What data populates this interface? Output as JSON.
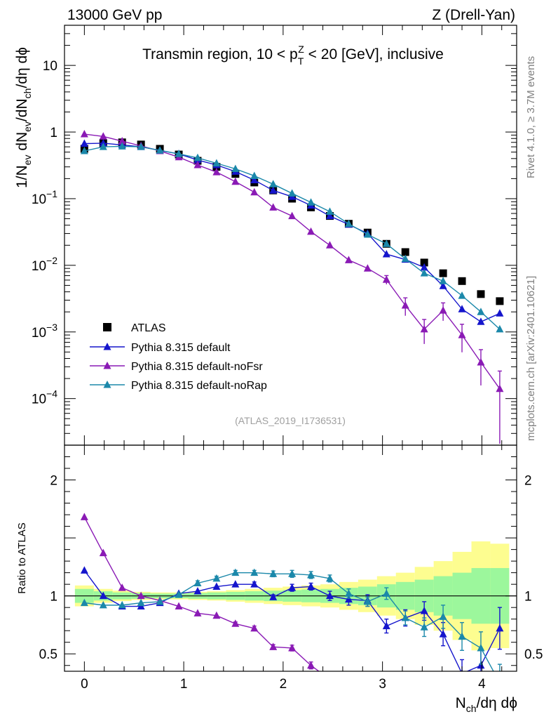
{
  "chart_data": {
    "type": "scatter",
    "header": {
      "left": "13000 GeV pp",
      "right": "Z (Drell-Yan)"
    },
    "title": {
      "prefix": "Transmin region, 10 < p",
      "sup": "Z",
      "sub": "T",
      "suffix": " < 20 [GeV], inclusive"
    },
    "ylabel_main": {
      "p1": "1/N",
      "s1": "ev",
      "p2": " dN",
      "s2": "ev",
      "p3": "/dN",
      "s3": "ch",
      "p4": "/dη dϕ"
    },
    "ylabel_ratio": "Ratio to ATLAS",
    "xlabel": {
      "p1": "N",
      "s1": "ch",
      "p2": "/dη dϕ"
    },
    "analysis_id": "(ATLAS_2019_I1736531)",
    "side_text": {
      "rivet": "Rivet 4.1.0, ≥ 3.7M events",
      "mcplots": "mcplots.cern.ch [arXiv:2401.10621]"
    },
    "main_panel": {
      "yscale": "log",
      "ylim": [
        2e-05,
        40
      ],
      "y_major_ticks": [
        {
          "value": 10,
          "base": "10",
          "exp": ""
        },
        {
          "value": 1,
          "base": "1",
          "exp": ""
        },
        {
          "value": 0.1,
          "base": "10",
          "exp": "−1"
        },
        {
          "value": 0.01,
          "base": "10",
          "exp": "−2"
        },
        {
          "value": 0.001,
          "base": "10",
          "exp": "−3"
        },
        {
          "value": 0.0001,
          "base": "10",
          "exp": "−4"
        }
      ]
    },
    "ratio_panel": {
      "ylim": [
        0.35,
        2.3
      ],
      "y_ticks": [
        {
          "value": 0.5,
          "label": "0.5"
        },
        {
          "value": 1,
          "label": "1"
        },
        {
          "value": 2,
          "label": "2"
        }
      ]
    },
    "xlim": [
      -0.2,
      4.35
    ],
    "x_ticks": [
      {
        "value": 0,
        "label": "0"
      },
      {
        "value": 1,
        "label": "1"
      },
      {
        "value": 2,
        "label": "2"
      },
      {
        "value": 3,
        "label": "3"
      },
      {
        "value": 4,
        "label": "4"
      }
    ],
    "x": [
      0.0,
      0.19,
      0.38,
      0.57,
      0.76,
      0.95,
      1.14,
      1.33,
      1.52,
      1.71,
      1.9,
      2.09,
      2.28,
      2.47,
      2.66,
      2.85,
      3.04,
      3.23,
      3.42,
      3.61,
      3.8,
      3.99,
      4.18
    ],
    "bin_width": 0.19,
    "atlas_band_green": [
      0.06,
      0.04,
      0.03,
      0.025,
      0.02,
      0.02,
      0.025,
      0.03,
      0.035,
      0.04,
      0.045,
      0.05,
      0.055,
      0.06,
      0.07,
      0.08,
      0.1,
      0.12,
      0.14,
      0.17,
      0.2,
      0.24,
      0.24
    ],
    "atlas_band_yellow": [
      0.09,
      0.06,
      0.045,
      0.035,
      0.03,
      0.03,
      0.035,
      0.04,
      0.05,
      0.06,
      0.07,
      0.08,
      0.09,
      0.1,
      0.12,
      0.14,
      0.17,
      0.2,
      0.25,
      0.3,
      0.38,
      0.47,
      0.45
    ],
    "series": [
      {
        "name": "ATLAS",
        "color": "#000000",
        "marker": "square",
        "values": [
          0.56,
          0.68,
          0.7,
          0.65,
          0.56,
          0.46,
          0.37,
          0.3,
          0.235,
          0.175,
          0.133,
          0.1,
          0.074,
          0.055,
          0.042,
          0.031,
          0.021,
          0.0158,
          0.011,
          0.0076,
          0.0058,
          0.0037,
          0.0029
        ],
        "ratio": [
          1,
          1,
          1,
          1,
          1,
          1,
          1,
          1,
          1,
          1,
          1,
          1,
          1,
          1,
          1,
          1,
          1,
          1,
          1,
          1,
          1,
          1,
          1
        ]
      },
      {
        "name": "Pythia 8.315 default",
        "color": "#1515cc",
        "marker": "triangle",
        "values": [
          0.67,
          0.68,
          0.64,
          0.6,
          0.53,
          0.47,
          0.38,
          0.32,
          0.255,
          0.19,
          0.133,
          0.107,
          0.079,
          0.055,
          0.041,
          0.03,
          0.0147,
          0.0122,
          0.0093,
          0.0049,
          0.0022,
          0.00142,
          0.0019
        ],
        "ratio": [
          1.22,
          1.0,
          0.91,
          0.91,
          0.94,
          1.02,
          1.04,
          1.08,
          1.1,
          1.1,
          0.99,
          1.07,
          1.08,
          1.0,
          0.97,
          0.96,
          0.74,
          0.81,
          0.87,
          0.67,
          0.33,
          0.4,
          0.72
        ],
        "ratio_err": [
          0,
          0,
          0,
          0,
          0,
          0,
          0,
          0,
          0,
          0.02,
          0.02,
          0.03,
          0.03,
          0.04,
          0.05,
          0.05,
          0.06,
          0.07,
          0.08,
          0.1,
          0.12,
          0.14,
          0.18
        ]
      },
      {
        "name": "Pythia 8.315 default-noFsr",
        "color": "#8a1ab5",
        "marker": "triangle",
        "values": [
          0.93,
          0.86,
          0.73,
          0.62,
          0.52,
          0.42,
          0.32,
          0.25,
          0.18,
          0.125,
          0.074,
          0.055,
          0.032,
          0.02,
          0.012,
          0.009,
          0.0061,
          0.0025,
          0.0011,
          0.0021,
          0.0009,
          0.00035,
          0.00014
        ],
        "ratio": [
          1.68,
          1.37,
          1.07,
          1.0,
          0.96,
          0.91,
          0.85,
          0.83,
          0.76,
          0.72,
          0.56,
          0.55,
          0.4,
          0.28,
          0.24,
          0.15,
          0.1,
          0.09,
          0.08,
          0.1,
          0.1,
          0.1,
          0.1
        ],
        "ratio_err": [
          0,
          0,
          0,
          0,
          0,
          0,
          0,
          0,
          0.015,
          0.02,
          0.02,
          0.025,
          0.03,
          0.03,
          0.04,
          0.04,
          0.04,
          0.04,
          0.04,
          0.05,
          0.05,
          0.05,
          0.05
        ],
        "main_err": [
          0,
          0,
          0,
          0,
          0,
          0,
          0,
          0,
          0,
          0,
          0,
          0,
          0,
          0,
          0,
          0,
          0.15,
          0.3,
          0.4,
          0.3,
          0.45,
          0.55,
          0.85
        ]
      },
      {
        "name": "Pythia 8.315 default-noRap",
        "color": "#1b88aa",
        "marker": "triangle",
        "values": [
          0.52,
          0.6,
          0.61,
          0.6,
          0.53,
          0.47,
          0.41,
          0.34,
          0.28,
          0.22,
          0.165,
          0.12,
          0.088,
          0.064,
          0.042,
          0.029,
          0.021,
          0.0125,
          0.0076,
          0.0058,
          0.0035,
          0.002,
          0.0011
        ],
        "ratio": [
          0.94,
          0.92,
          0.92,
          0.94,
          0.95,
          1.01,
          1.11,
          1.15,
          1.2,
          1.2,
          1.19,
          1.19,
          1.18,
          1.15,
          1.02,
          0.95,
          1.02,
          0.81,
          0.73,
          0.82,
          0.65,
          0.55,
          0.25
        ],
        "ratio_err": [
          0,
          0,
          0,
          0,
          0,
          0,
          0.02,
          0.02,
          0.02,
          0.02,
          0.025,
          0.03,
          0.03,
          0.03,
          0.04,
          0.04,
          0.05,
          0.06,
          0.08,
          0.1,
          0.12,
          0.14,
          0.16
        ]
      }
    ]
  }
}
